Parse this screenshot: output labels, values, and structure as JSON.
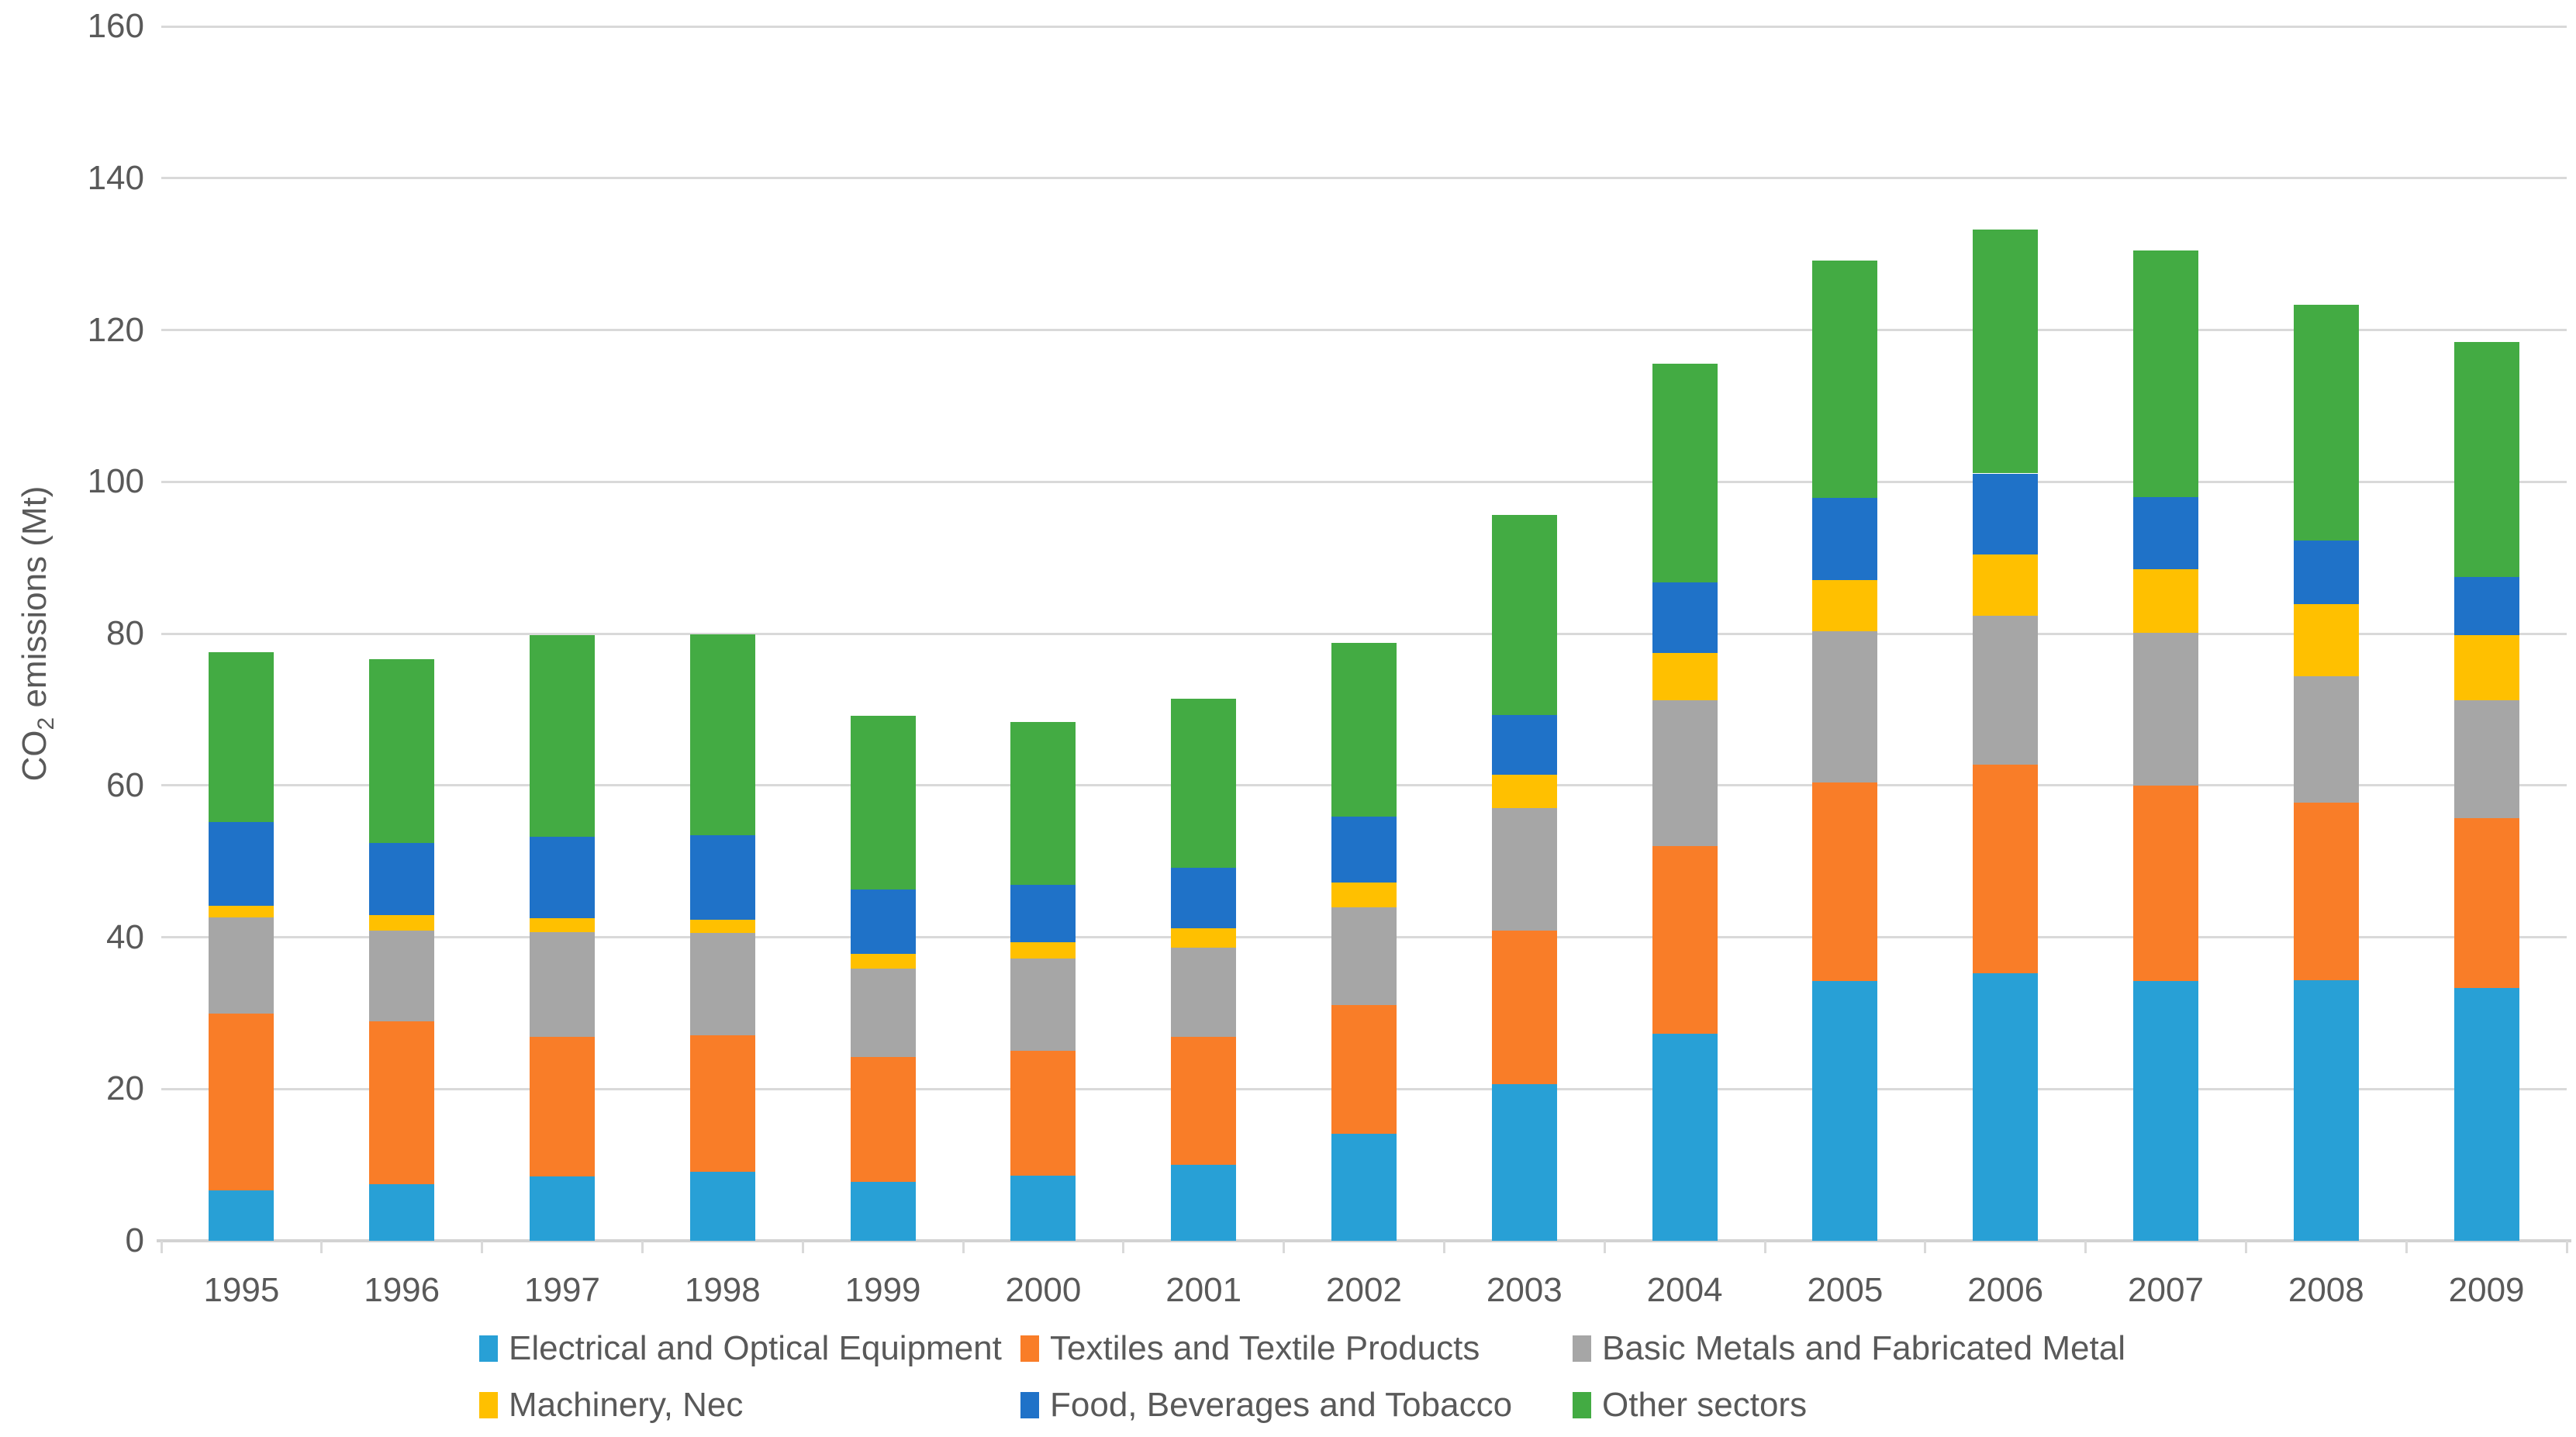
{
  "chart_data": {
    "type": "bar",
    "stacked": true,
    "title": "",
    "xlabel": "",
    "ylabel": "CO2 emissions (Mt)",
    "ylim": [
      0,
      160
    ],
    "y_ticks": [
      0,
      20,
      40,
      60,
      80,
      100,
      120,
      140,
      160
    ],
    "grid": true,
    "legend_position": "bottom",
    "categories": [
      "1995",
      "1996",
      "1997",
      "1998",
      "1999",
      "2000",
      "2001",
      "2002",
      "2003",
      "2004",
      "2005",
      "2006",
      "2007",
      "2008",
      "2009"
    ],
    "series": [
      {
        "name": "Electrical and Optical Equipment",
        "color": "#28A0D6",
        "values": [
          6.6,
          7.5,
          8.5,
          9.1,
          7.8,
          8.6,
          10.0,
          14.1,
          20.6,
          27.3,
          34.2,
          35.2,
          34.2,
          34.3,
          33.3
        ]
      },
      {
        "name": "Textiles and Textile Products",
        "color": "#F97D28",
        "values": [
          23.3,
          21.4,
          18.4,
          18.0,
          16.4,
          16.4,
          16.9,
          17.0,
          20.3,
          24.7,
          26.2,
          27.5,
          25.8,
          23.4,
          22.4
        ]
      },
      {
        "name": "Basic Metals and Fabricated Metal",
        "color": "#A6A6A6",
        "values": [
          12.7,
          12.0,
          13.8,
          13.5,
          11.7,
          12.2,
          11.7,
          12.8,
          16.1,
          19.2,
          19.9,
          19.7,
          20.1,
          16.7,
          15.5
        ]
      },
      {
        "name": "Machinery, Nec",
        "color": "#FFC000",
        "values": [
          1.5,
          2.0,
          1.8,
          1.7,
          1.9,
          2.1,
          2.6,
          3.3,
          4.4,
          6.2,
          6.8,
          8.0,
          8.4,
          9.5,
          8.6
        ]
      },
      {
        "name": "Food, Beverages and Tobacco",
        "color": "#1F72C8",
        "values": [
          11.1,
          9.5,
          10.7,
          11.1,
          8.5,
          7.6,
          7.9,
          8.7,
          7.9,
          9.3,
          10.8,
          10.7,
          9.5,
          8.4,
          7.7
        ]
      },
      {
        "name": "Other sectors",
        "color": "#43AB43",
        "values": [
          22.4,
          24.2,
          26.6,
          26.5,
          22.9,
          21.5,
          22.3,
          22.9,
          26.3,
          28.9,
          31.2,
          32.1,
          32.5,
          31.0,
          30.9
        ]
      }
    ]
  },
  "y_axis": {
    "title_prefix": "CO",
    "title_subscript": "2",
    "title_suffix": " emissions (Mt)"
  }
}
